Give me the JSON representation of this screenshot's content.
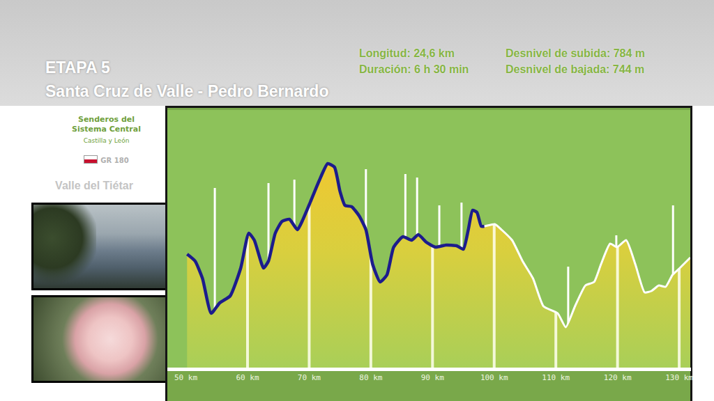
{
  "header": {
    "title": "ETAPA 5",
    "subtitle": "Santa Cruz de Valle - Pedro Bernardo",
    "stats": [
      "Longitud: 24,6 km",
      "Duración: 6 h 30 min",
      "Desnivel de subida: 784 m",
      "Desnivel de bajada: 744 m"
    ]
  },
  "sidebar": {
    "brand": [
      "Senderos del",
      "Sistema Central"
    ],
    "region": "Castilla y León",
    "route": "GR 180",
    "valley": "Valle del Tiétar"
  },
  "chart_data": {
    "type": "area",
    "series": [
      {
        "color": "#ffffff",
        "x": [
          50.2,
          51.5,
          52.7,
          54.1,
          55.5,
          57.2,
          58.9,
          60.2,
          61.1,
          62.6,
          63.4,
          64.5,
          65.6,
          66.8,
          68.1,
          69.0,
          70.2,
          71.6,
          73.0,
          74.1,
          75.0,
          75.8,
          76.9,
          78.1,
          79.2,
          80.3,
          81.5,
          82.6,
          83.7,
          85.2,
          86.6,
          87.7,
          89.0,
          90.5,
          92.2,
          93.9,
          95.0,
          95.8,
          96.5,
          97.2,
          97.9,
          98.4,
          100.1,
          101.2,
          102.9,
          104.6,
          106.3,
          108.0,
          110.3,
          111.6,
          113.1,
          114.8,
          116.2,
          117.3,
          118.8,
          119.9,
          121.4,
          122.9,
          124.4,
          125.5,
          126.7,
          127.8,
          128.9,
          130.1,
          131.8
        ],
        "values": [
          163,
          153,
          128,
          78,
          93,
          103,
          143,
          193,
          183,
          143,
          153,
          193,
          210,
          213,
          198,
          213,
          238,
          268,
          293,
          288,
          253,
          233,
          231,
          218,
          198,
          148,
          123,
          133,
          173,
          188,
          183,
          191,
          180,
          173,
          176,
          175,
          170,
          198,
          226,
          223,
          203,
          203,
          206,
          198,
          183,
          153,
          128,
          88,
          78,
          58,
          88,
          118,
          123,
          148,
          178,
          173,
          183,
          148,
          108,
          110,
          118,
          116,
          133,
          143,
          158
        ]
      },
      {
        "color": "#1c1c8c",
        "x": [
          50.2,
          51.5,
          52.7,
          54.1,
          55.5,
          57.2,
          58.9,
          60.2,
          61.1,
          62.6,
          63.4,
          64.5,
          65.6,
          66.8,
          68.1,
          69.0,
          70.2,
          71.6,
          73.0,
          74.1,
          75.0,
          75.8,
          76.9,
          78.1,
          79.2,
          80.3,
          81.5,
          82.6,
          83.7,
          85.2,
          86.6,
          87.7,
          89.0,
          90.5,
          92.2,
          93.9,
          95.0,
          95.8,
          96.5,
          97.2,
          97.9,
          98.4
        ],
        "values": [
          163,
          153,
          128,
          78,
          93,
          103,
          143,
          193,
          183,
          143,
          153,
          193,
          210,
          213,
          198,
          213,
          238,
          268,
          293,
          288,
          253,
          233,
          231,
          218,
          198,
          148,
          123,
          133,
          173,
          188,
          183,
          191,
          180,
          173,
          176,
          175,
          170,
          198,
          226,
          223,
          203,
          203
        ]
      }
    ],
    "waypoints": {
      "x": [
        54.7,
        63.4,
        67.6,
        79.2,
        85.6,
        87.5,
        91.1,
        94.7,
        112.0,
        119.8,
        129.0
      ],
      "values": [
        258,
        265,
        270,
        285,
        278,
        273,
        233,
        237,
        145,
        190,
        233
      ]
    },
    "xlim": [
      47.0,
      131.8
    ],
    "xticks": [
      {
        "value": 50,
        "label": "50 km"
      },
      {
        "value": 60,
        "label": "60 km"
      },
      {
        "value": 70,
        "label": "70 km"
      },
      {
        "value": 80,
        "label": "80 km"
      },
      {
        "value": 90,
        "label": "90 km"
      },
      {
        "value": 100,
        "label": "100 km"
      },
      {
        "value": 110,
        "label": "110 km"
      },
      {
        "value": 120,
        "label": "120 km"
      },
      {
        "value": 130,
        "label": "130 km"
      }
    ],
    "ylim": [
      0,
      370
    ],
    "tick_labels": "x",
    "grid": true
  }
}
